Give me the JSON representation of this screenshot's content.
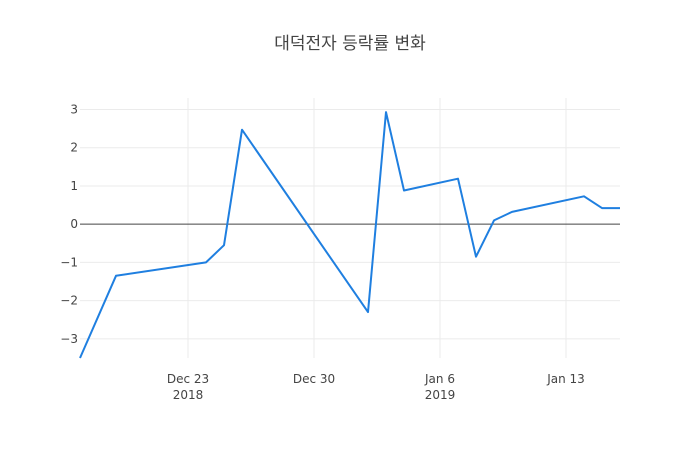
{
  "chart_data": {
    "type": "line",
    "title": "대덕전자 등락률 변화",
    "xlabel": "",
    "ylabel": "",
    "grid": true,
    "zero_line": true,
    "ylim": [
      -3.5,
      3.3
    ],
    "xlim": [
      "2018-12-17",
      "2019-01-16"
    ],
    "y_ticks": [
      {
        "value": 3,
        "label": "3"
      },
      {
        "value": 2,
        "label": "2"
      },
      {
        "value": 1,
        "label": "1"
      },
      {
        "value": 0,
        "label": "0"
      },
      {
        "value": -1,
        "label": "−1"
      },
      {
        "value": -2,
        "label": "−2"
      },
      {
        "value": -3,
        "label": "−3"
      }
    ],
    "x_ticks": [
      {
        "date": "2018-12-23",
        "label": "Dec 23",
        "sublabel": "2018"
      },
      {
        "date": "2018-12-30",
        "label": "Dec 30",
        "sublabel": ""
      },
      {
        "date": "2019-01-06",
        "label": "Jan 6",
        "sublabel": "2019"
      },
      {
        "date": "2019-01-13",
        "label": "Jan 13",
        "sublabel": ""
      }
    ],
    "series": [
      {
        "color": "#1f7fe0",
        "points": [
          {
            "x": "2018-12-17",
            "y": -3.5
          },
          {
            "x": "2018-12-19",
            "y": -1.35
          },
          {
            "x": "2018-12-24",
            "y": -1.0
          },
          {
            "x": "2018-12-25",
            "y": -0.55
          },
          {
            "x": "2018-12-26",
            "y": 2.47
          },
          {
            "x": "2019-01-02",
            "y": -2.3
          },
          {
            "x": "2019-01-03",
            "y": 2.93
          },
          {
            "x": "2019-01-04",
            "y": 0.88
          },
          {
            "x": "2019-01-07",
            "y": 1.19
          },
          {
            "x": "2019-01-08",
            "y": -0.85
          },
          {
            "x": "2019-01-09",
            "y": 0.1
          },
          {
            "x": "2019-01-10",
            "y": 0.32
          },
          {
            "x": "2019-01-14",
            "y": 0.73
          },
          {
            "x": "2019-01-15",
            "y": 0.42
          },
          {
            "x": "2019-01-16",
            "y": 0.42
          }
        ]
      }
    ]
  }
}
